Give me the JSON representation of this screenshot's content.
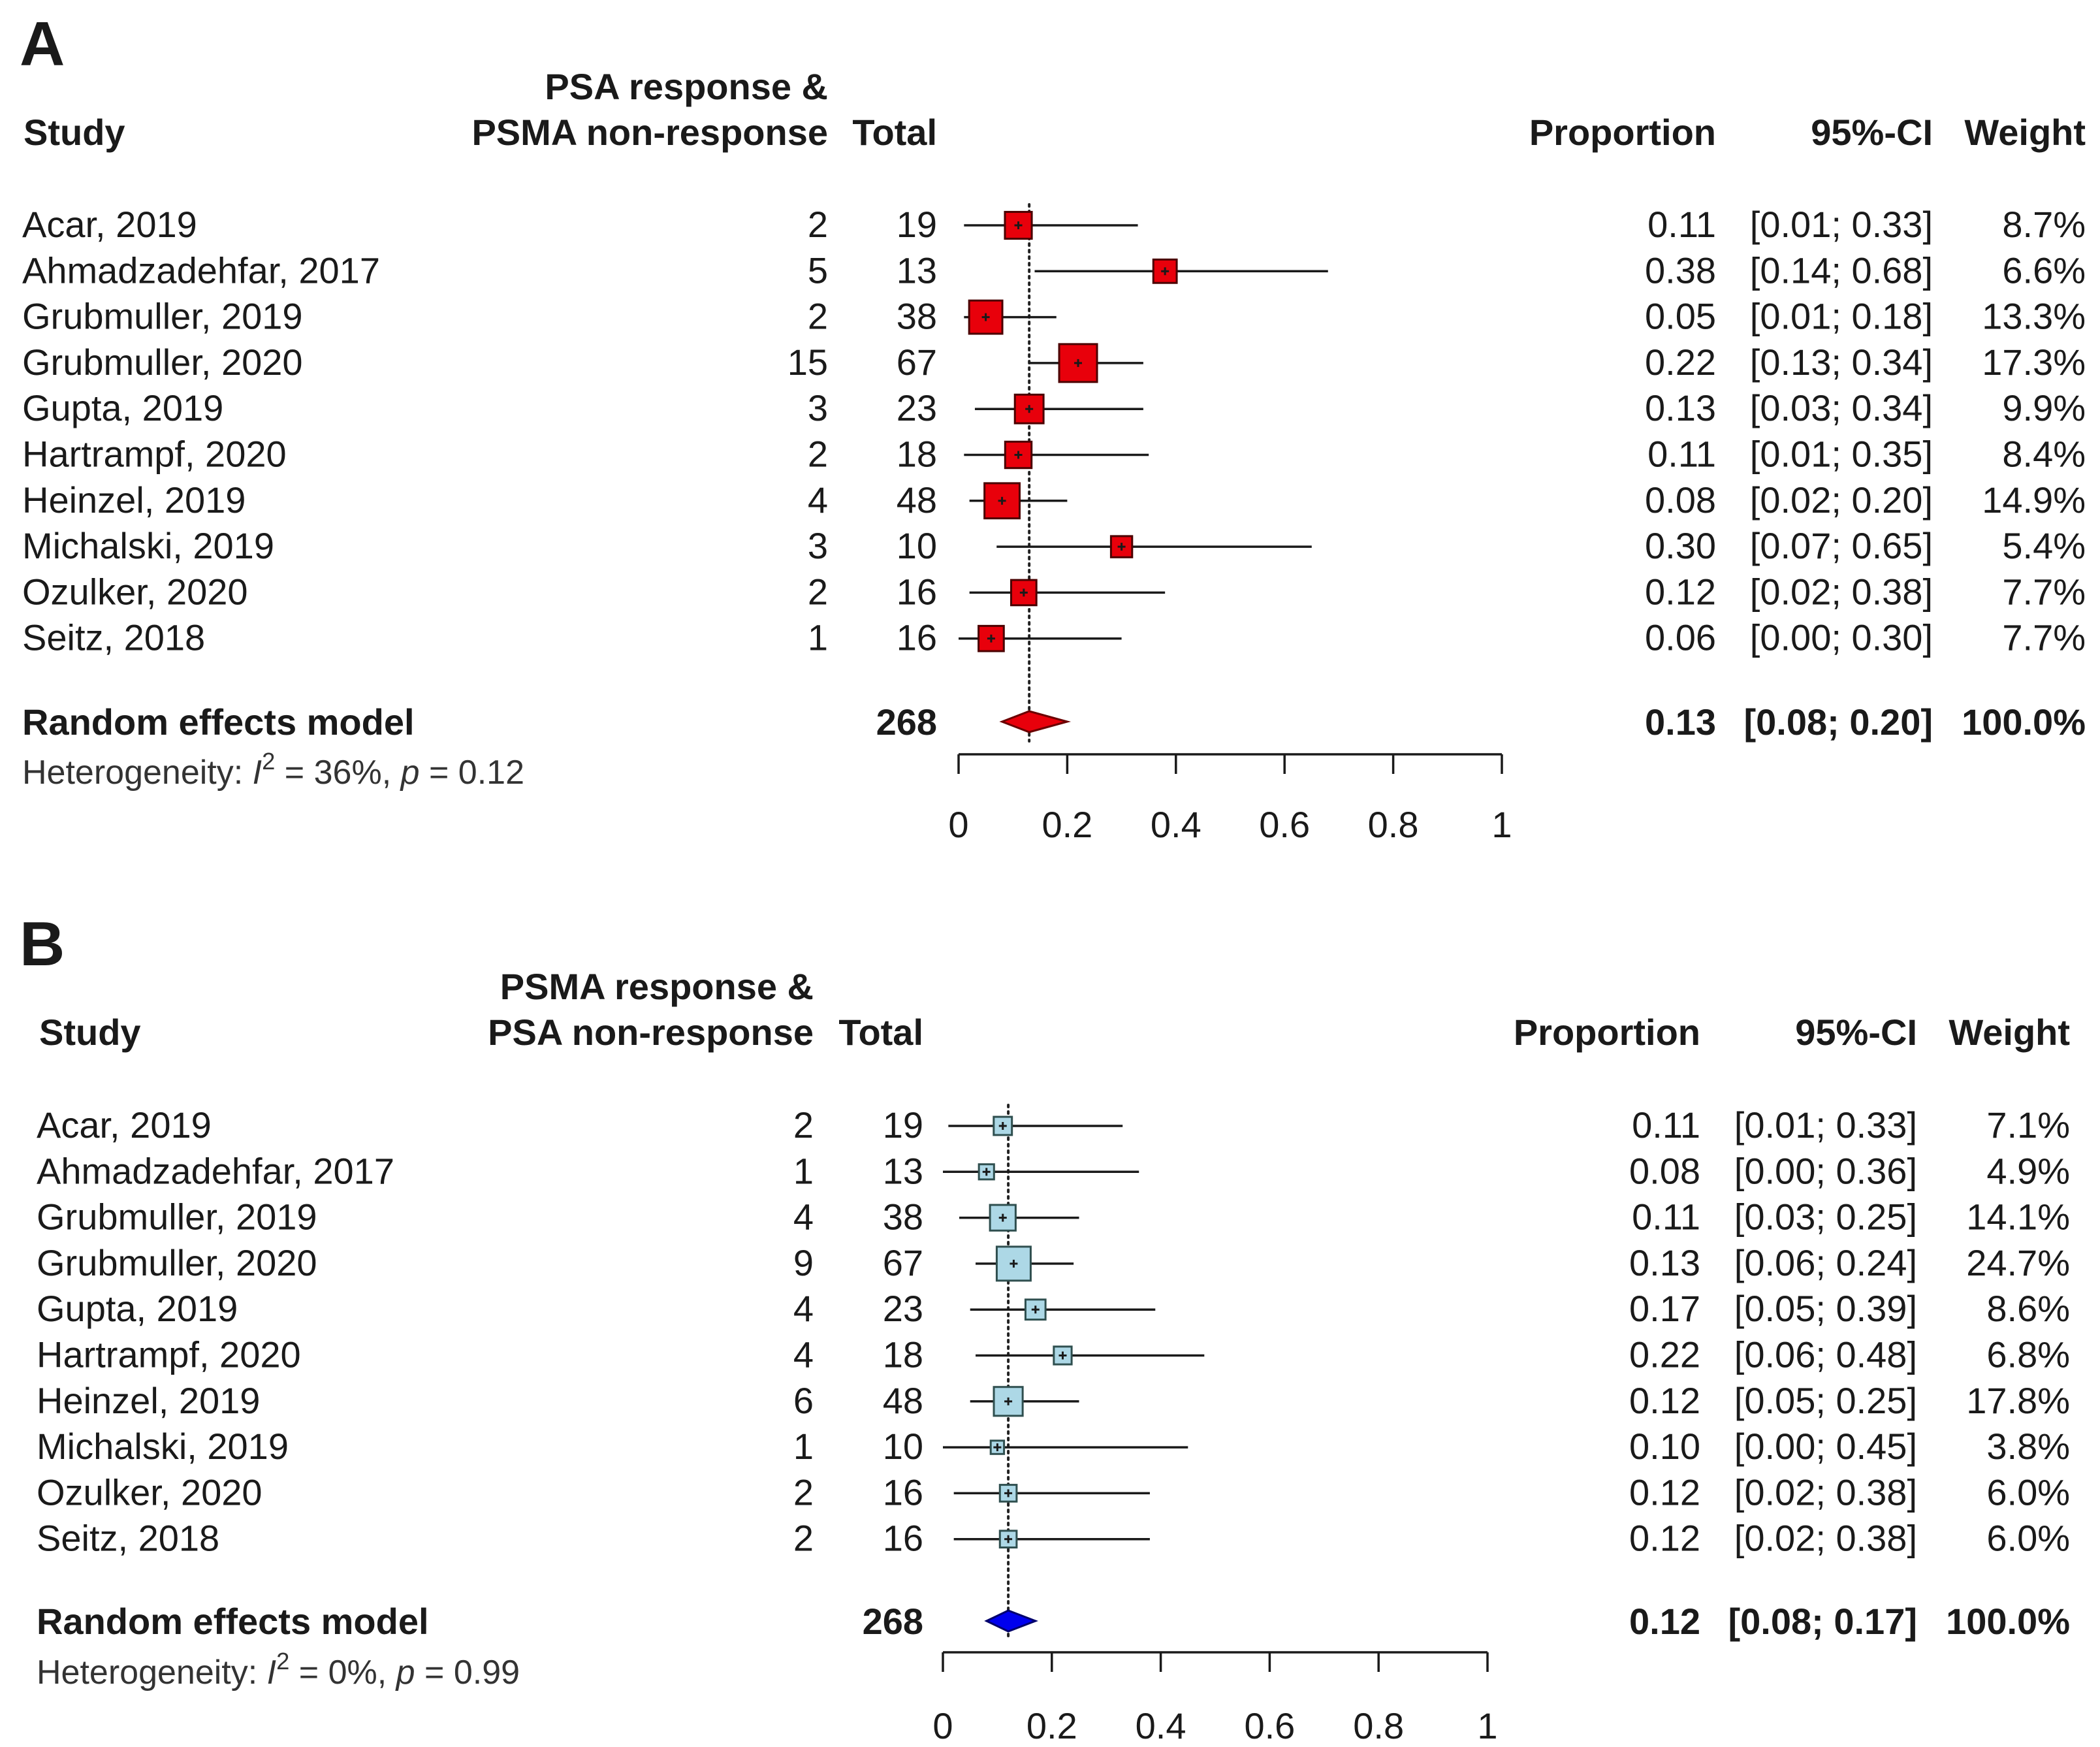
{
  "chart_data": [
    {
      "type": "forest",
      "panel_label": "A",
      "headers": {
        "study": "Study",
        "events_line1": "PSA response &",
        "events_line2": "PSMA non-response",
        "total": "Total",
        "proportion": "Proportion",
        "ci": "95%-CI",
        "weight": "Weight"
      },
      "studies": [
        {
          "name": "Acar, 2019",
          "events": "2",
          "total": "19",
          "proportion": 0.11,
          "ci_low": 0.01,
          "ci_high": 0.33,
          "prop_text": "0.11",
          "ci_text": "[0.01; 0.33]",
          "weight": 8.7,
          "weight_text": "8.7%"
        },
        {
          "name": "Ahmadzadehfar, 2017",
          "events": "5",
          "total": "13",
          "proportion": 0.38,
          "ci_low": 0.14,
          "ci_high": 0.68,
          "prop_text": "0.38",
          "ci_text": "[0.14; 0.68]",
          "weight": 6.6,
          "weight_text": "6.6%"
        },
        {
          "name": "Grubmuller, 2019",
          "events": "2",
          "total": "38",
          "proportion": 0.05,
          "ci_low": 0.01,
          "ci_high": 0.18,
          "prop_text": "0.05",
          "ci_text": "[0.01; 0.18]",
          "weight": 13.3,
          "weight_text": "13.3%"
        },
        {
          "name": "Grubmuller, 2020",
          "events": "15",
          "total": "67",
          "proportion": 0.22,
          "ci_low": 0.13,
          "ci_high": 0.34,
          "prop_text": "0.22",
          "ci_text": "[0.13; 0.34]",
          "weight": 17.3,
          "weight_text": "17.3%"
        },
        {
          "name": "Gupta, 2019",
          "events": "3",
          "total": "23",
          "proportion": 0.13,
          "ci_low": 0.03,
          "ci_high": 0.34,
          "prop_text": "0.13",
          "ci_text": "[0.03; 0.34]",
          "weight": 9.9,
          "weight_text": "9.9%"
        },
        {
          "name": "Hartrampf, 2020",
          "events": "2",
          "total": "18",
          "proportion": 0.11,
          "ci_low": 0.01,
          "ci_high": 0.35,
          "prop_text": "0.11",
          "ci_text": "[0.01; 0.35]",
          "weight": 8.4,
          "weight_text": "8.4%"
        },
        {
          "name": "Heinzel, 2019",
          "events": "4",
          "total": "48",
          "proportion": 0.08,
          "ci_low": 0.02,
          "ci_high": 0.2,
          "prop_text": "0.08",
          "ci_text": "[0.02; 0.20]",
          "weight": 14.9,
          "weight_text": "14.9%"
        },
        {
          "name": "Michalski, 2019",
          "events": "3",
          "total": "10",
          "proportion": 0.3,
          "ci_low": 0.07,
          "ci_high": 0.65,
          "prop_text": "0.30",
          "ci_text": "[0.07; 0.65]",
          "weight": 5.4,
          "weight_text": "5.4%"
        },
        {
          "name": "Ozulker, 2020",
          "events": "2",
          "total": "16",
          "proportion": 0.12,
          "ci_low": 0.02,
          "ci_high": 0.38,
          "prop_text": "0.12",
          "ci_text": "[0.02; 0.38]",
          "weight": 7.7,
          "weight_text": "7.7%"
        },
        {
          "name": "Seitz, 2018",
          "events": "1",
          "total": "16",
          "proportion": 0.06,
          "ci_low": 0.0,
          "ci_high": 0.3,
          "prop_text": "0.06",
          "ci_text": "[0.00; 0.30]",
          "weight": 7.7,
          "weight_text": "7.7%"
        }
      ],
      "summary": {
        "label": "Random effects model",
        "total": "268",
        "proportion": 0.13,
        "ci_low": 0.08,
        "ci_high": 0.2,
        "prop_text": "0.13",
        "ci_text": "[0.08; 0.20]",
        "weight_text": "100.0%"
      },
      "heterogeneity": {
        "prefix": "Heterogeneity: ",
        "i_symbol": "I",
        "sup": "2",
        "i2_text": " = 36%, ",
        "p_symbol": "p",
        "p_text": " = 0.12"
      },
      "x_ticks": [
        0,
        0.2,
        0.4,
        0.6,
        0.8,
        1
      ],
      "x_tick_labels": [
        "0",
        "0.2",
        "0.4",
        "0.6",
        "0.8",
        "1"
      ],
      "xlim": [
        0,
        1
      ],
      "colors": {
        "box_fill": "#e8000b",
        "box_stroke": "#4a0000",
        "diamond_fill": "#e8000b",
        "diamond_stroke": "#6b0000"
      }
    },
    {
      "type": "forest",
      "panel_label": "B",
      "headers": {
        "study": "Study",
        "events_line1": "PSMA response &",
        "events_line2": "PSA non-response",
        "total": "Total",
        "proportion": "Proportion",
        "ci": "95%-CI",
        "weight": "Weight"
      },
      "studies": [
        {
          "name": "Acar, 2019",
          "events": "2",
          "total": "19",
          "proportion": 0.11,
          "ci_low": 0.01,
          "ci_high": 0.33,
          "prop_text": "0.11",
          "ci_text": "[0.01; 0.33]",
          "weight": 7.1,
          "weight_text": "7.1%"
        },
        {
          "name": "Ahmadzadehfar, 2017",
          "events": "1",
          "total": "13",
          "proportion": 0.08,
          "ci_low": 0.0,
          "ci_high": 0.36,
          "prop_text": "0.08",
          "ci_text": "[0.00; 0.36]",
          "weight": 4.9,
          "weight_text": "4.9%"
        },
        {
          "name": "Grubmuller, 2019",
          "events": "4",
          "total": "38",
          "proportion": 0.11,
          "ci_low": 0.03,
          "ci_high": 0.25,
          "prop_text": "0.11",
          "ci_text": "[0.03; 0.25]",
          "weight": 14.1,
          "weight_text": "14.1%"
        },
        {
          "name": "Grubmuller, 2020",
          "events": "9",
          "total": "67",
          "proportion": 0.13,
          "ci_low": 0.06,
          "ci_high": 0.24,
          "prop_text": "0.13",
          "ci_text": "[0.06; 0.24]",
          "weight": 24.7,
          "weight_text": "24.7%"
        },
        {
          "name": "Gupta, 2019",
          "events": "4",
          "total": "23",
          "proportion": 0.17,
          "ci_low": 0.05,
          "ci_high": 0.39,
          "prop_text": "0.17",
          "ci_text": "[0.05; 0.39]",
          "weight": 8.6,
          "weight_text": "8.6%"
        },
        {
          "name": "Hartrampf, 2020",
          "events": "4",
          "total": "18",
          "proportion": 0.22,
          "ci_low": 0.06,
          "ci_high": 0.48,
          "prop_text": "0.22",
          "ci_text": "[0.06; 0.48]",
          "weight": 6.8,
          "weight_text": "6.8%"
        },
        {
          "name": "Heinzel, 2019",
          "events": "6",
          "total": "48",
          "proportion": 0.12,
          "ci_low": 0.05,
          "ci_high": 0.25,
          "prop_text": "0.12",
          "ci_text": "[0.05; 0.25]",
          "weight": 17.8,
          "weight_text": "17.8%"
        },
        {
          "name": "Michalski, 2019",
          "events": "1",
          "total": "10",
          "proportion": 0.1,
          "ci_low": 0.0,
          "ci_high": 0.45,
          "prop_text": "0.10",
          "ci_text": "[0.00; 0.45]",
          "weight": 3.8,
          "weight_text": "3.8%"
        },
        {
          "name": "Ozulker, 2020",
          "events": "2",
          "total": "16",
          "proportion": 0.12,
          "ci_low": 0.02,
          "ci_high": 0.38,
          "prop_text": "0.12",
          "ci_text": "[0.02; 0.38]",
          "weight": 6.0,
          "weight_text": "6.0%"
        },
        {
          "name": "Seitz, 2018",
          "events": "2",
          "total": "16",
          "proportion": 0.12,
          "ci_low": 0.02,
          "ci_high": 0.38,
          "prop_text": "0.12",
          "ci_text": "[0.02; 0.38]",
          "weight": 6.0,
          "weight_text": "6.0%"
        }
      ],
      "summary": {
        "label": "Random effects model",
        "total": "268",
        "proportion": 0.12,
        "ci_low": 0.08,
        "ci_high": 0.17,
        "prop_text": "0.12",
        "ci_text": "[0.08; 0.17]",
        "weight_text": "100.0%"
      },
      "heterogeneity": {
        "prefix": "Heterogeneity: ",
        "i_symbol": "I",
        "sup": "2",
        "i2_text": " = 0%, ",
        "p_symbol": "p",
        "p_text": " = 0.99"
      },
      "x_ticks": [
        0,
        0.2,
        0.4,
        0.6,
        0.8,
        1
      ],
      "x_tick_labels": [
        "0",
        "0.2",
        "0.4",
        "0.6",
        "0.8",
        "1"
      ],
      "xlim": [
        0,
        1
      ],
      "colors": {
        "box_fill": "#add8e6",
        "box_stroke": "#2f4f4f",
        "diamond_fill": "#0000ee",
        "diamond_stroke": "#00006b"
      }
    }
  ]
}
